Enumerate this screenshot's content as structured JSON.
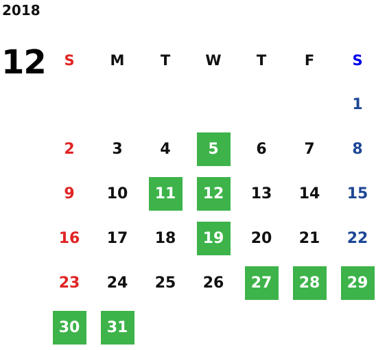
{
  "calendar": {
    "year": "2018",
    "month": "12",
    "weekdays": [
      "S",
      "M",
      "T",
      "W",
      "T",
      "F",
      "S"
    ],
    "first_weekday_index": 6,
    "days_in_month": 31,
    "highlighted_days": [
      5,
      11,
      12,
      19,
      27,
      28,
      29,
      30,
      31
    ],
    "colors": {
      "sunday": "#e02424",
      "saturday": "#1e4796",
      "saturday_header": "#0000ee",
      "weekday": "#111111",
      "highlight_bg": "#3db34a",
      "highlight_text": "#ffffff"
    }
  }
}
